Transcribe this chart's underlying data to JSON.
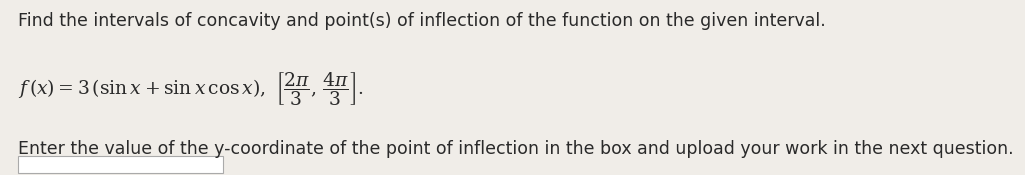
{
  "bg_color": "#f0ede8",
  "line1": "Find the intervals of concavity and point(s) of inflection of the function on the given interval.",
  "line3": "Enter the value of the y-coordinate of the point of inflection in the box and upload your work in the next question.",
  "font_size_main": 12.5,
  "font_size_math": 13.5,
  "text_color": "#2a2a2a",
  "box_color": "#ffffff"
}
